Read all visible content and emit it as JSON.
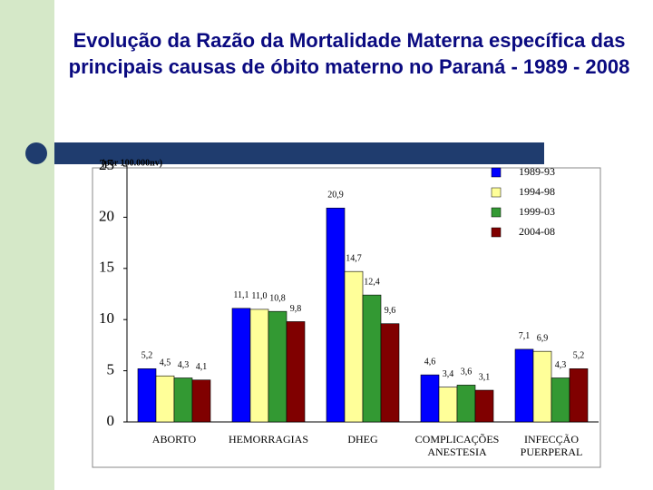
{
  "chart_data": {
    "type": "bar",
    "title": "Evolução da Razão da Mortalidade Materna específica das principais causas de óbito materno no Paraná - 1989 - 2008",
    "y_label": "(por 100.000nv)",
    "categories": [
      "ABORTO",
      "HEMORRAGIAS",
      "DHEG",
      "COMPLICAÇÕES ANESTESIA",
      "INFECÇÃO PUERPERAL"
    ],
    "series": [
      {
        "name": "1989-93",
        "color": "#0000ff",
        "values": [
          5.2,
          11.1,
          20.9,
          4.6,
          7.1
        ],
        "value_labels": [
          "5,2",
          "11,1",
          "20,9",
          "4,6",
          "7,1"
        ]
      },
      {
        "name": "1994-98",
        "color": "#ffff99",
        "values": [
          4.5,
          11.0,
          14.7,
          3.4,
          6.9
        ],
        "value_labels": [
          "4,5",
          "11,0",
          "14,7",
          "3,4",
          "6,9"
        ]
      },
      {
        "name": "1999-03",
        "color": "#339933",
        "values": [
          4.3,
          10.8,
          12.4,
          3.6,
          4.3
        ],
        "value_labels": [
          "4,3",
          "10,8",
          "12,4",
          "3,6",
          "4,3"
        ]
      },
      {
        "name": "2004-08",
        "color": "#800000",
        "values": [
          4.1,
          9.8,
          9.6,
          3.1,
          5.2
        ],
        "value_labels": [
          "4,1",
          "9,8",
          "9,6",
          "3,1",
          "5,2"
        ]
      }
    ],
    "ylim": [
      0,
      25
    ],
    "yticks": [
      0,
      5,
      10,
      15,
      20,
      25
    ]
  }
}
